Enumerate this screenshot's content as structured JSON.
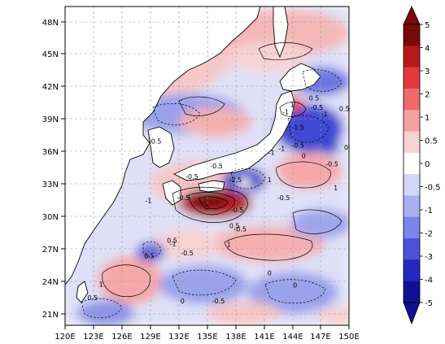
{
  "map": {
    "lon_labels": [
      "120E",
      "123E",
      "126E",
      "129E",
      "132E",
      "135E",
      "138E",
      "141E",
      "144E",
      "147E",
      "150E"
    ],
    "lat_labels": [
      "48N",
      "45N",
      "42N",
      "39N",
      "36N",
      "33N",
      "30N",
      "27N",
      "24N",
      "21N"
    ],
    "lon_range": [
      120,
      150
    ],
    "lat_range": [
      19.5,
      50
    ],
    "grid": "dashed"
  },
  "colorbar": {
    "ticks": [
      "5",
      "4",
      "3",
      "2",
      "1",
      "0.5",
      "0",
      "-0.5",
      "-1",
      "-2",
      "-3",
      "-4",
      "-5"
    ],
    "colors": [
      "#7a0a0a",
      "#b81a1a",
      "#e23a3a",
      "#f06a6a",
      "#f6a0a0",
      "#f9d2d2",
      "#ffffff",
      "#d2d6f8",
      "#a9b0f2",
      "#7c84ea",
      "#4a53d8",
      "#2228c0",
      "#0e1290"
    ]
  },
  "contour_labels": [
    {
      "text": "-0.5",
      "lon": 129.5,
      "lat": 36.9
    },
    {
      "text": "-1",
      "lon": 128.8,
      "lat": 31.2
    },
    {
      "text": "-0.5",
      "lon": 132.5,
      "lat": 31.5
    },
    {
      "text": "-0.5",
      "lon": 133.4,
      "lat": 33.5
    },
    {
      "text": "-0.5",
      "lon": 136.0,
      "lat": 34.5
    },
    {
      "text": "-2.5",
      "lon": 138.0,
      "lat": 33.2
    },
    {
      "text": "5",
      "lon": 135.0,
      "lat": 30.6
    },
    {
      "text": "-0.5",
      "lon": 138.2,
      "lat": 30.3
    },
    {
      "text": "-0.5",
      "lon": 138.5,
      "lat": 28.5
    },
    {
      "text": "0.5",
      "lon": 137.9,
      "lat": 28.8
    },
    {
      "text": "1",
      "lon": 137.3,
      "lat": 27.0
    },
    {
      "text": "-0.5",
      "lon": 132.9,
      "lat": 26.2
    },
    {
      "text": "-1",
      "lon": 131.4,
      "lat": 27.1
    },
    {
      "text": "0.5",
      "lon": 128.9,
      "lat": 25.9
    },
    {
      "text": "1",
      "lon": 123.8,
      "lat": 23.2
    },
    {
      "text": "0.5",
      "lon": 122.9,
      "lat": 21.9
    },
    {
      "text": "0",
      "lon": 132.4,
      "lat": 21.6
    },
    {
      "text": "-0.5",
      "lon": 136.2,
      "lat": 21.6
    },
    {
      "text": "0",
      "lon": 141.6,
      "lat": 24.3
    },
    {
      "text": "0",
      "lon": 144.3,
      "lat": 23.1
    },
    {
      "text": "1",
      "lon": 141.6,
      "lat": 33.2
    },
    {
      "text": "-0.5",
      "lon": 143.1,
      "lat": 31.5
    },
    {
      "text": "1",
      "lon": 148.6,
      "lat": 32.4
    },
    {
      "text": "-0.5",
      "lon": 148.2,
      "lat": 34.7
    },
    {
      "text": "0",
      "lon": 145.2,
      "lat": 35.5
    },
    {
      "text": "-0.5",
      "lon": 144.6,
      "lat": 36.5
    },
    {
      "text": "-1",
      "lon": 142.9,
      "lat": 36.2
    },
    {
      "text": "-1",
      "lon": 143.3,
      "lat": 39.7
    },
    {
      "text": "1",
      "lon": 144.0,
      "lat": 40.4
    },
    {
      "text": "0.5",
      "lon": 149.5,
      "lat": 40.0
    },
    {
      "text": "-0.5",
      "lon": 146.6,
      "lat": 40.1
    },
    {
      "text": "-1",
      "lon": 147.4,
      "lat": 39.5
    },
    {
      "text": "0.5",
      "lon": 146.3,
      "lat": 41.0
    },
    {
      "text": "-1.5",
      "lon": 144.6,
      "lat": 38.2
    },
    {
      "text": "-1",
      "lon": 141.8,
      "lat": 35.8
    },
    {
      "text": "0.5",
      "lon": 131.3,
      "lat": 27.4
    },
    {
      "text": "0",
      "lon": 149.7,
      "lat": 36.3
    }
  ]
}
